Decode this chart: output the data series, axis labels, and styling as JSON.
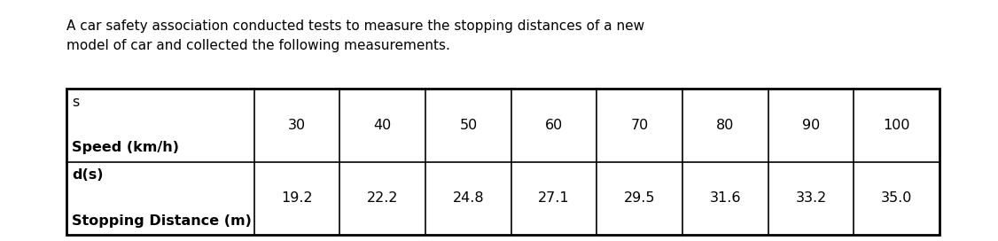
{
  "title_line1": "A car safety association conducted tests to measure the stopping distances of a new",
  "title_line2": "model of car and collected the following measurements.",
  "row1_label_top": "s",
  "row1_label_bottom": "Speed (km/h)",
  "row2_label_top": "d(s)",
  "row2_label_bottom": "Stopping Distance (m)",
  "speed_values": [
    "30",
    "40",
    "50",
    "60",
    "70",
    "80",
    "90",
    "100"
  ],
  "distance_values": [
    "19.2",
    "22.2",
    "24.8",
    "27.1",
    "29.5",
    "31.6",
    "33.2",
    "35.0"
  ],
  "background_color": "#ffffff",
  "text_color": "#000000",
  "title_fontsize": 11.0,
  "table_fontsize": 11.5,
  "table_label_fontsize": 11.5
}
